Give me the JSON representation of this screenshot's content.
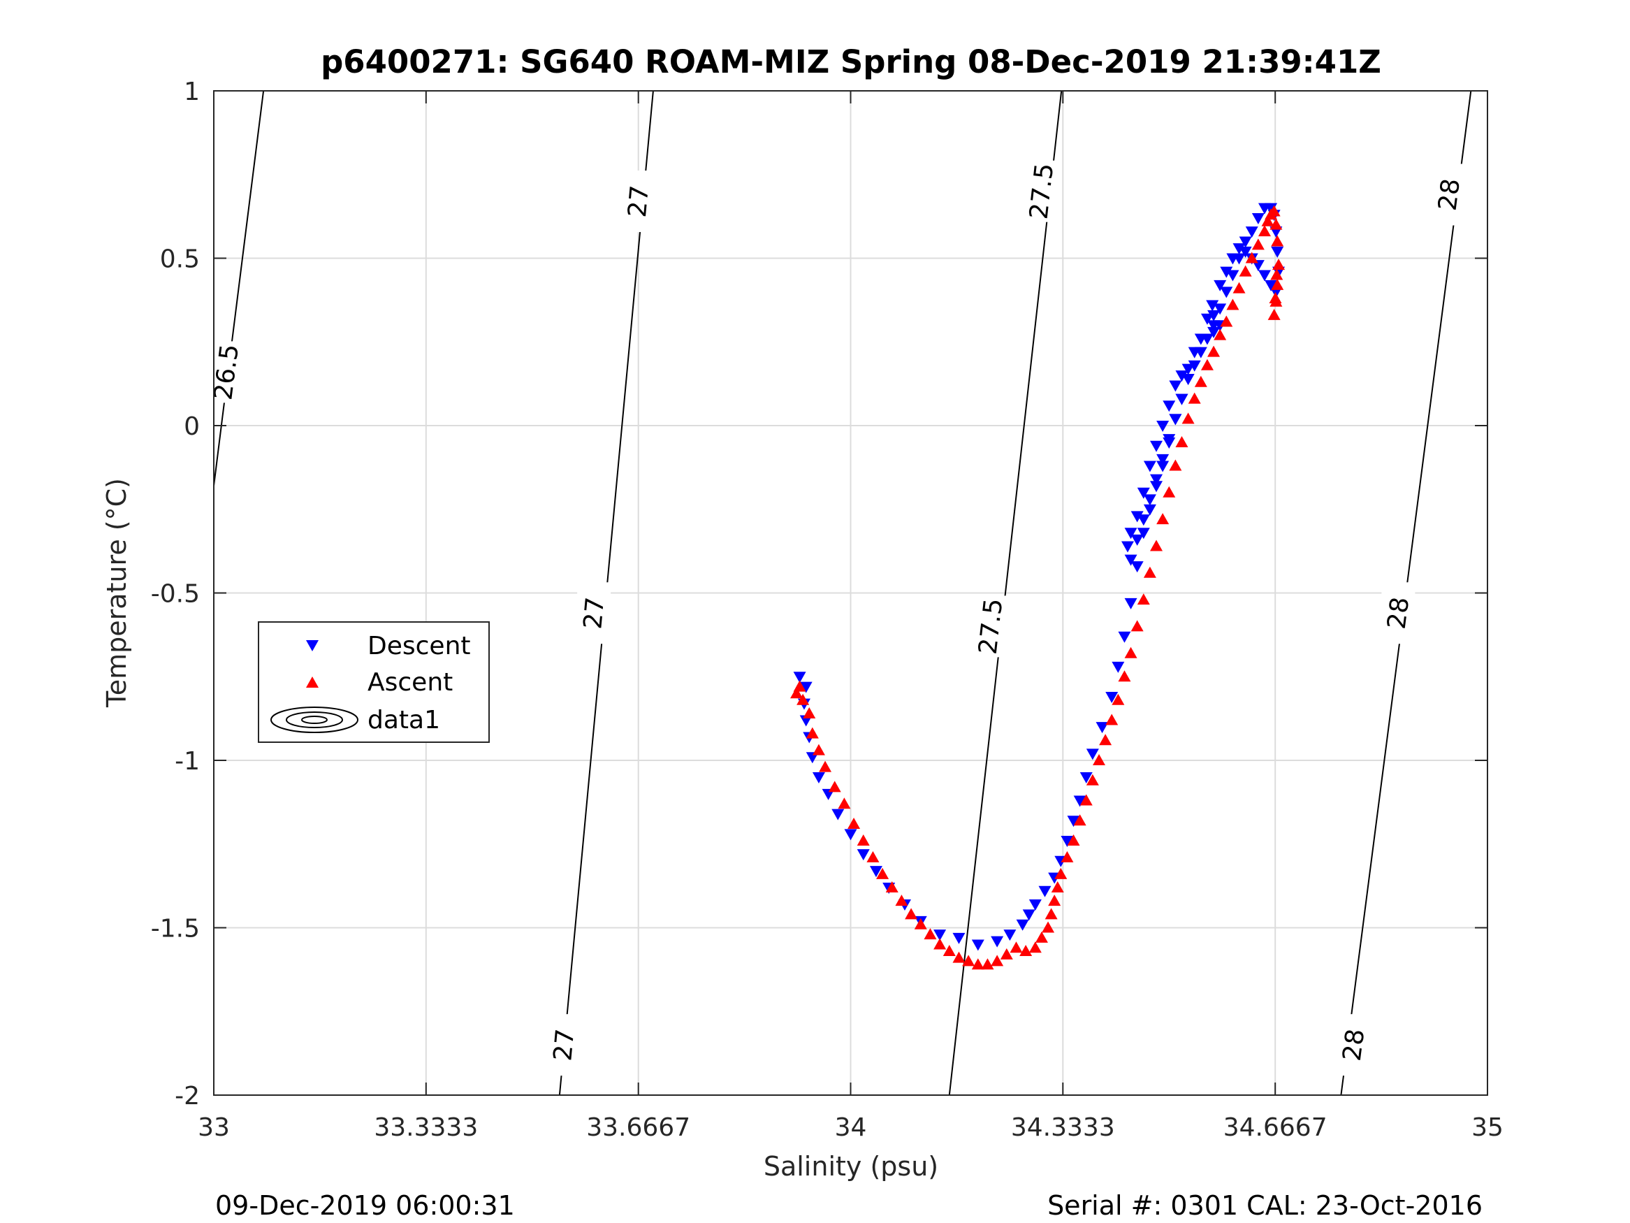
{
  "footer": {
    "left": "09-Dec-2019 06:00:31",
    "right": "Serial #: 0301  CAL: 23-Oct-2016"
  },
  "chart_data": {
    "type": "scatter",
    "title": "p6400271: SG640 ROAM-MIZ Spring 08-Dec-2019 21:39:41Z",
    "xlabel": "Salinity (psu)",
    "ylabel": "Temperature (°C)",
    "xlim": [
      33,
      35
    ],
    "ylim": [
      -2,
      1
    ],
    "xticks": [
      33,
      33.3333,
      33.6667,
      34,
      34.3333,
      34.6667,
      35
    ],
    "xtick_labels": [
      "33",
      "33.3333",
      "33.6667",
      "34",
      "34.3333",
      "34.6667",
      "35"
    ],
    "yticks": [
      1,
      0.5,
      0,
      -0.5,
      -1,
      -1.5,
      -2
    ],
    "ytick_labels": [
      "1",
      "0.5",
      "0",
      "-0.5",
      "-1",
      "-1.5",
      "-2"
    ],
    "grid": true,
    "legend": {
      "position": "left",
      "entries": [
        "Descent",
        "Ascent",
        "data1"
      ]
    },
    "colors": {
      "descent": "#0000ff",
      "ascent": "#ff0000",
      "contour": "#000000",
      "grid": "#dcdcdc"
    },
    "density_contours": [
      {
        "label": "26.5",
        "points": [
          [
            33.0,
            -0.18
          ],
          [
            33.078,
            1.0
          ]
        ],
        "labels_at": [
          [
            33.02,
            0.16
          ]
        ]
      },
      {
        "label": "27",
        "points": [
          [
            33.543,
            -2.0
          ],
          [
            33.69,
            1.0
          ]
        ],
        "labels_at": [
          [
            33.55,
            -1.85
          ],
          [
            33.597,
            -0.56
          ],
          [
            33.667,
            0.67
          ]
        ]
      },
      {
        "label": "27.5",
        "points": [
          [
            34.155,
            -2.0
          ],
          [
            34.331,
            1.0
          ]
        ],
        "labels_at": [
          [
            34.22,
            -0.6
          ],
          [
            34.3,
            0.7
          ]
        ]
      },
      {
        "label": "28",
        "points": [
          [
            34.77,
            -2.0
          ],
          [
            34.974,
            1.0
          ]
        ],
        "labels_at": [
          [
            34.79,
            -1.85
          ],
          [
            34.86,
            -0.56
          ],
          [
            34.94,
            0.69
          ]
        ]
      }
    ],
    "series": [
      {
        "name": "Descent",
        "marker": "triangle-down",
        "x": [
          33.92,
          33.93,
          33.927,
          33.93,
          33.935,
          33.94,
          33.95,
          33.965,
          33.98,
          34.0,
          34.02,
          34.04,
          34.06,
          34.085,
          34.11,
          34.14,
          34.17,
          34.2,
          34.23,
          34.25,
          34.27,
          34.28,
          34.29,
          34.305,
          34.32,
          34.33,
          34.34,
          34.35,
          34.36,
          34.37,
          34.38,
          34.395,
          34.41,
          34.42,
          34.43,
          34.44,
          34.45,
          34.46,
          34.47,
          34.48,
          34.49,
          34.5,
          34.51,
          34.52,
          34.53,
          34.54,
          34.55,
          34.56,
          34.57,
          34.58,
          34.59,
          34.6,
          34.61,
          34.62,
          34.63,
          34.64,
          34.65,
          34.66,
          34.665,
          34.668,
          34.67,
          34.672,
          34.668,
          34.66,
          34.65,
          34.64,
          34.63,
          34.62,
          34.61,
          34.6,
          34.59,
          34.58,
          34.568,
          34.57,
          34.58,
          34.57,
          34.56,
          34.55,
          34.54,
          34.53,
          34.52,
          34.51,
          34.5,
          34.49,
          34.48,
          34.47,
          34.46,
          34.45,
          34.44,
          34.435,
          34.44,
          34.45,
          34.46,
          34.47,
          34.48,
          34.49,
          34.5,
          34.51,
          34.52,
          34.53
        ],
        "y": [
          -0.75,
          -0.78,
          -0.83,
          -0.88,
          -0.93,
          -0.99,
          -1.05,
          -1.1,
          -1.16,
          -1.22,
          -1.28,
          -1.33,
          -1.38,
          -1.43,
          -1.48,
          -1.52,
          -1.53,
          -1.55,
          -1.54,
          -1.52,
          -1.49,
          -1.46,
          -1.43,
          -1.39,
          -1.35,
          -1.3,
          -1.24,
          -1.18,
          -1.12,
          -1.05,
          -0.98,
          -0.9,
          -0.81,
          -0.72,
          -0.63,
          -0.53,
          -0.42,
          -0.32,
          -0.25,
          -0.18,
          -0.12,
          -0.05,
          0.02,
          0.08,
          0.14,
          0.18,
          0.22,
          0.26,
          0.3,
          0.35,
          0.4,
          0.45,
          0.5,
          0.55,
          0.58,
          0.62,
          0.65,
          0.65,
          0.63,
          0.58,
          0.52,
          0.46,
          0.4,
          0.42,
          0.45,
          0.48,
          0.5,
          0.52,
          0.53,
          0.5,
          0.46,
          0.42,
          0.36,
          0.33,
          0.3,
          0.28,
          0.32,
          0.26,
          0.22,
          0.17,
          0.15,
          0.12,
          0.06,
          0.0,
          -0.06,
          -0.12,
          -0.2,
          -0.27,
          -0.32,
          -0.36,
          -0.4,
          -0.34,
          -0.28,
          -0.22,
          -0.16,
          -0.1,
          -0.04,
          0.02,
          0.08,
          0.14
        ]
      },
      {
        "name": "Ascent",
        "marker": "triangle-up",
        "x": [
          33.915,
          33.92,
          33.925,
          33.935,
          33.94,
          33.95,
          33.96,
          33.975,
          33.99,
          34.005,
          34.02,
          34.035,
          34.05,
          34.065,
          34.08,
          34.095,
          34.11,
          34.125,
          34.14,
          34.155,
          34.17,
          34.185,
          34.2,
          34.215,
          34.23,
          34.245,
          34.26,
          34.275,
          34.29,
          34.3,
          34.31,
          34.315,
          34.32,
          34.325,
          34.33,
          34.34,
          34.35,
          34.36,
          34.37,
          34.38,
          34.39,
          34.4,
          34.41,
          34.42,
          34.43,
          34.44,
          34.45,
          34.46,
          34.47,
          34.48,
          34.49,
          34.5,
          34.51,
          34.52,
          34.53,
          34.54,
          34.55,
          34.56,
          34.57,
          34.58,
          34.59,
          34.6,
          34.61,
          34.62,
          34.63,
          34.64,
          34.65,
          34.655,
          34.66,
          34.665,
          34.668,
          34.67,
          34.672,
          34.67,
          34.668,
          34.665,
          34.667,
          34.669
        ],
        "y": [
          -0.8,
          -0.78,
          -0.82,
          -0.86,
          -0.92,
          -0.97,
          -1.02,
          -1.08,
          -1.13,
          -1.19,
          -1.24,
          -1.29,
          -1.34,
          -1.38,
          -1.42,
          -1.46,
          -1.49,
          -1.52,
          -1.55,
          -1.57,
          -1.59,
          -1.6,
          -1.61,
          -1.61,
          -1.6,
          -1.58,
          -1.56,
          -1.57,
          -1.56,
          -1.53,
          -1.5,
          -1.46,
          -1.42,
          -1.38,
          -1.34,
          -1.29,
          -1.24,
          -1.18,
          -1.12,
          -1.06,
          -1.0,
          -0.94,
          -0.88,
          -0.82,
          -0.75,
          -0.68,
          -0.6,
          -0.52,
          -0.44,
          -0.36,
          -0.28,
          -0.2,
          -0.12,
          -0.05,
          0.02,
          0.08,
          0.13,
          0.18,
          0.22,
          0.27,
          0.31,
          0.36,
          0.41,
          0.46,
          0.5,
          0.54,
          0.58,
          0.61,
          0.63,
          0.64,
          0.6,
          0.55,
          0.48,
          0.42,
          0.37,
          0.33,
          0.38,
          0.45
        ]
      }
    ]
  }
}
